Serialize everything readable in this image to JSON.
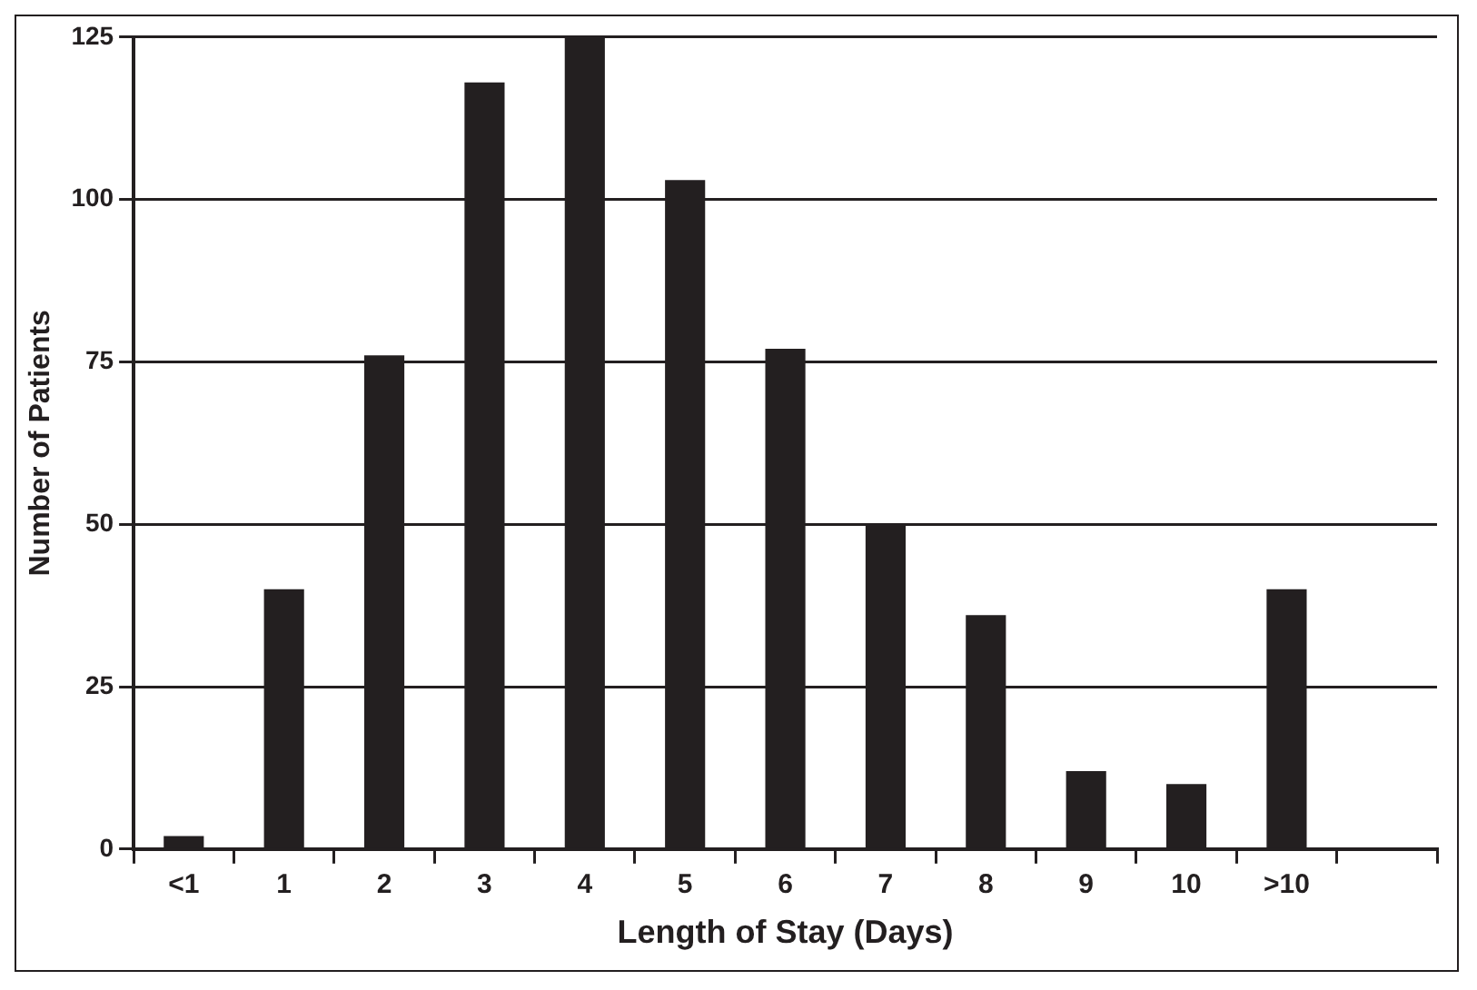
{
  "chart_data": {
    "type": "bar",
    "xlabel": "Length of Stay (Days)",
    "ylabel": "Number of Patients",
    "categories": [
      "<1",
      "1",
      "2",
      "3",
      "4",
      "5",
      "6",
      "7",
      "8",
      "9",
      "10",
      ">10",
      null
    ],
    "values": [
      2,
      40,
      76,
      118,
      125,
      103,
      77,
      50,
      36,
      12,
      10,
      40,
      null
    ],
    "color": "#231f20",
    "ylim": [
      0,
      125
    ],
    "yticks": [
      0,
      25,
      50,
      75,
      100,
      125
    ],
    "grid": "y",
    "legend": false
  }
}
